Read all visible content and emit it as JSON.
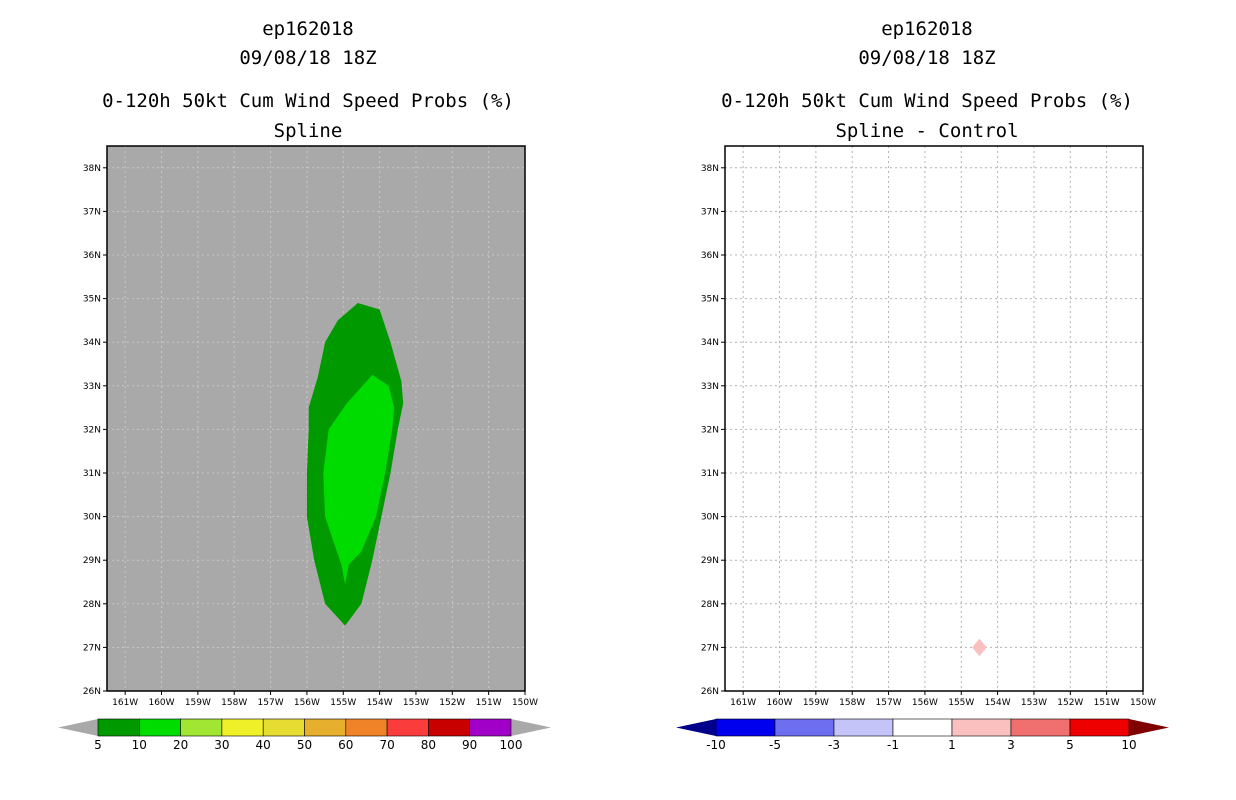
{
  "panels": [
    {
      "storm": "ep162018",
      "datetime": "09/08/18 18Z",
      "product": "0-120h 50kt Cum Wind Speed Probs (%)",
      "subtitle": "Spline"
    },
    {
      "storm": "ep162018",
      "datetime": "09/08/18 18Z",
      "product": "0-120h 50kt Cum Wind Speed Probs (%)",
      "subtitle": "Spline - Control"
    }
  ],
  "chart_data": [
    {
      "type": "filled-contour-map",
      "title": "0-120h 50kt Cum Wind Speed Probs (%)",
      "subtitle": "Spline",
      "xlim": [
        -161.5,
        -150
      ],
      "ylim": [
        26,
        38.5
      ],
      "x_ticks": [
        -161,
        -160,
        -159,
        -158,
        -157,
        -156,
        -155,
        -154,
        -153,
        -152,
        -151,
        -150
      ],
      "x_tick_labels": [
        "161W",
        "160W",
        "159W",
        "158W",
        "157W",
        "156W",
        "155W",
        "154W",
        "153W",
        "152W",
        "151W",
        "150W"
      ],
      "y_ticks": [
        26,
        27,
        28,
        29,
        30,
        31,
        32,
        33,
        34,
        35,
        36,
        37,
        38
      ],
      "y_tick_labels": [
        "26N",
        "27N",
        "28N",
        "29N",
        "30N",
        "31N",
        "32N",
        "33N",
        "34N",
        "35N",
        "36N",
        "37N",
        "38N"
      ],
      "background_color": "#a9a9a9",
      "contours": [
        {
          "level": "5-10",
          "color": "#009a00",
          "polygon": [
            [
              -154.6,
              34.9
            ],
            [
              -154.0,
              34.75
            ],
            [
              -153.7,
              34.0
            ],
            [
              -153.4,
              33.1
            ],
            [
              -153.35,
              32.6
            ],
            [
              -153.5,
              32.0
            ],
            [
              -153.7,
              31.0
            ],
            [
              -153.95,
              30.0
            ],
            [
              -154.2,
              29.0
            ],
            [
              -154.5,
              28.0
            ],
            [
              -154.95,
              27.5
            ],
            [
              -155.5,
              28.0
            ],
            [
              -155.8,
              29.0
            ],
            [
              -156.0,
              30.0
            ],
            [
              -156.0,
              31.0
            ],
            [
              -155.95,
              32.0
            ],
            [
              -155.95,
              32.5
            ],
            [
              -155.7,
              33.2
            ],
            [
              -155.5,
              34.0
            ],
            [
              -155.15,
              34.5
            ]
          ]
        },
        {
          "level": "10-20",
          "color": "#00dc00",
          "polygon": [
            [
              -154.2,
              33.25
            ],
            [
              -153.75,
              33.0
            ],
            [
              -153.6,
              32.5
            ],
            [
              -153.65,
              32.0
            ],
            [
              -153.85,
              31.0
            ],
            [
              -154.1,
              30.0
            ],
            [
              -154.5,
              29.2
            ],
            [
              -154.85,
              28.9
            ],
            [
              -154.95,
              28.45
            ],
            [
              -155.05,
              28.9
            ],
            [
              -155.3,
              29.5
            ],
            [
              -155.5,
              30.0
            ],
            [
              -155.55,
              31.0
            ],
            [
              -155.4,
              32.0
            ],
            [
              -154.9,
              32.6
            ]
          ]
        }
      ],
      "colorbar": {
        "labels": [
          "5",
          "10",
          "20",
          "30",
          "40",
          "50",
          "60",
          "70",
          "80",
          "90",
          "100"
        ],
        "colors": [
          "#009a00",
          "#00dc00",
          "#a0e632",
          "#f0f028",
          "#e6dc32",
          "#e6af2d",
          "#f08228",
          "#fa3c3c",
          "#c80000",
          "#a000c8"
        ],
        "end_color": "#a9a9a9"
      }
    },
    {
      "type": "filled-contour-map",
      "title": "0-120h 50kt Cum Wind Speed Probs (%)",
      "subtitle": "Spline - Control",
      "xlim": [
        -161.5,
        -150
      ],
      "ylim": [
        26,
        38.5
      ],
      "x_ticks": [
        -161,
        -160,
        -159,
        -158,
        -157,
        -156,
        -155,
        -154,
        -153,
        -152,
        -151,
        -150
      ],
      "x_tick_labels": [
        "161W",
        "160W",
        "159W",
        "158W",
        "157W",
        "156W",
        "155W",
        "154W",
        "153W",
        "152W",
        "151W",
        "150W"
      ],
      "y_ticks": [
        26,
        27,
        28,
        29,
        30,
        31,
        32,
        33,
        34,
        35,
        36,
        37,
        38
      ],
      "y_tick_labels": [
        "26N",
        "27N",
        "28N",
        "29N",
        "30N",
        "31N",
        "32N",
        "33N",
        "34N",
        "35N",
        "36N",
        "37N",
        "38N"
      ],
      "background_color": "#ffffff",
      "grid": true,
      "contours": [
        {
          "level": "1-3",
          "color": "#fac0c0",
          "polygon": [
            [
              -154.5,
              27.2
            ],
            [
              -154.3,
              27.0
            ],
            [
              -154.5,
              26.8
            ],
            [
              -154.7,
              27.0
            ]
          ]
        }
      ],
      "colorbar": {
        "labels": [
          "-10",
          "-5",
          "-3",
          "-1",
          "1",
          "3",
          "5",
          "10"
        ],
        "colors": [
          "#0000ee",
          "#6e6ef0",
          "#c4c4f8",
          "#ffffff",
          "#fac0c0",
          "#f07070",
          "#ee0000"
        ],
        "left_end_color": "#00008b",
        "right_end_color": "#800000"
      }
    }
  ]
}
